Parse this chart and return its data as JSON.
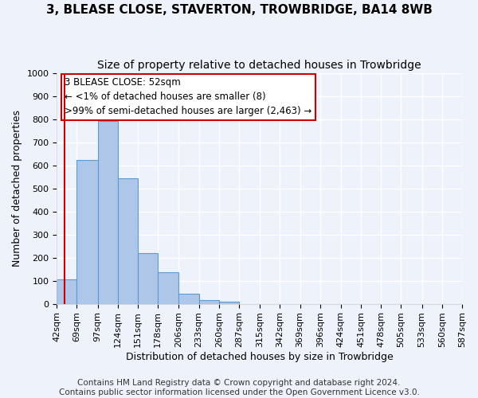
{
  "title": "3, BLEASE CLOSE, STAVERTON, TROWBRIDGE, BA14 8WB",
  "subtitle": "Size of property relative to detached houses in Trowbridge",
  "xlabel": "Distribution of detached houses by size in Trowbridge",
  "ylabel": "Number of detached properties",
  "bar_left_edges": [
    42,
    69,
    97,
    124,
    151,
    178,
    206,
    233,
    260,
    287,
    315,
    342,
    369,
    396,
    424,
    451,
    478,
    505,
    533,
    560
  ],
  "bar_widths": [
    27,
    28,
    27,
    27,
    27,
    28,
    27,
    27,
    27,
    28,
    27,
    27,
    27,
    28,
    27,
    27,
    27,
    28,
    27,
    27
  ],
  "bar_heights": [
    106,
    622,
    790,
    543,
    220,
    135,
    44,
    17,
    10,
    0,
    0,
    0,
    0,
    0,
    0,
    0,
    0,
    0,
    0,
    0
  ],
  "bar_color": "#aec6e8",
  "bar_edgecolor": "#5b9bd5",
  "ylim": [
    0,
    1000
  ],
  "yticks": [
    0,
    100,
    200,
    300,
    400,
    500,
    600,
    700,
    800,
    900,
    1000
  ],
  "xtick_labels": [
    "42sqm",
    "69sqm",
    "97sqm",
    "124sqm",
    "151sqm",
    "178sqm",
    "206sqm",
    "233sqm",
    "260sqm",
    "287sqm",
    "315sqm",
    "342sqm",
    "369sqm",
    "396sqm",
    "424sqm",
    "451sqm",
    "478sqm",
    "505sqm",
    "533sqm",
    "560sqm",
    "587sqm"
  ],
  "annotation_line1": "3 BLEASE CLOSE: 52sqm",
  "annotation_line2": "← <1% of detached houses are smaller (8)",
  "annotation_line3": ">99% of semi-detached houses are larger (2,463) →",
  "redline_x": 52,
  "footer1": "Contains HM Land Registry data © Crown copyright and database right 2024.",
  "footer2": "Contains public sector information licensed under the Open Government Licence v3.0.",
  "background_color": "#eef3fb",
  "grid_color": "#ffffff",
  "annotation_box_edgecolor": "#cc0000",
  "redline_color": "#cc0000",
  "title_fontsize": 11,
  "subtitle_fontsize": 10,
  "axis_label_fontsize": 9,
  "tick_fontsize": 8,
  "annotation_fontsize": 8.5,
  "footer_fontsize": 7.5
}
